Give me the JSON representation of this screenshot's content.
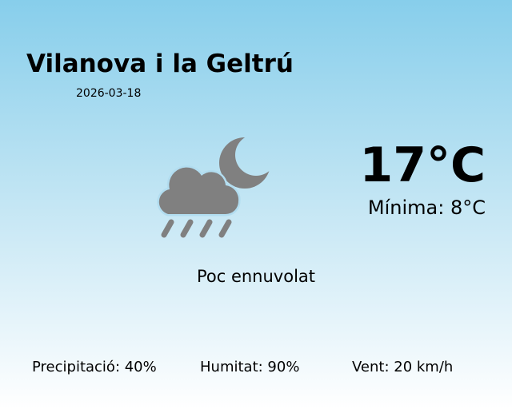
{
  "location": {
    "city": "Vilanova i la Geltrú",
    "date": "2026-03-18"
  },
  "current": {
    "temperature": "17°C",
    "minimum": "Mínima: 8°C",
    "description": "Poc ennuvolat",
    "icon": "rain-cloud-moon-icon",
    "icon_color": "#808080"
  },
  "stats": {
    "precipitation": "Precipitació: 40%",
    "humidity": "Humitat: 90%",
    "wind": "Vent: 20 km/h"
  }
}
